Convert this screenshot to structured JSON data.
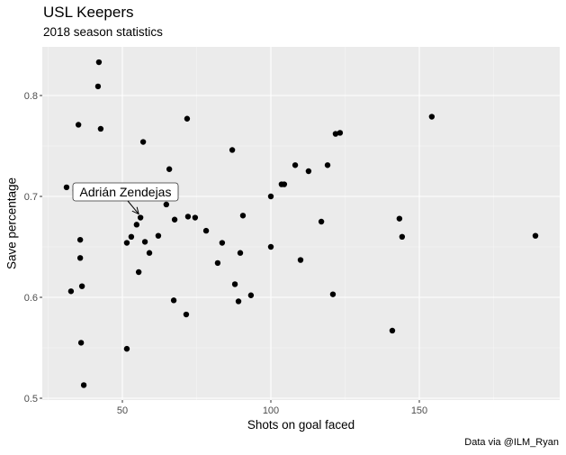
{
  "title": "USL Keepers",
  "subtitle": "2018 season statistics",
  "caption": "Data via @ILM_Ryan",
  "chart_data": {
    "type": "scatter",
    "title": "USL Keepers",
    "subtitle": "2018 season statistics",
    "xlabel": "Shots on goal faced",
    "ylabel": "Save percentage",
    "caption": "Data via @ILM_Ryan",
    "xlim": [
      25,
      199
    ],
    "ylim": [
      0.495,
      0.845
    ],
    "x_ticks": [
      50,
      100,
      150
    ],
    "y_ticks": [
      0.5,
      0.6,
      0.7,
      0.8
    ],
    "x_tick_labels": [
      "50",
      "100",
      "150"
    ],
    "y_tick_labels": [
      "0.5",
      "0.6",
      "0.7",
      "0.8"
    ],
    "grid": true,
    "legend": null,
    "points": [
      {
        "x": 42.1,
        "y": 0.833
      },
      {
        "x": 41.8,
        "y": 0.809
      },
      {
        "x": 35.2,
        "y": 0.771
      },
      {
        "x": 42.7,
        "y": 0.767
      },
      {
        "x": 57.0,
        "y": 0.754
      },
      {
        "x": 65.8,
        "y": 0.727
      },
      {
        "x": 31.2,
        "y": 0.709
      },
      {
        "x": 34.2,
        "y": 0.706
      },
      {
        "x": 56.1,
        "y": 0.679
      },
      {
        "x": 54.8,
        "y": 0.672
      },
      {
        "x": 64.8,
        "y": 0.692
      },
      {
        "x": 67.6,
        "y": 0.677
      },
      {
        "x": 53.0,
        "y": 0.66
      },
      {
        "x": 51.5,
        "y": 0.654
      },
      {
        "x": 57.6,
        "y": 0.655
      },
      {
        "x": 62.1,
        "y": 0.661
      },
      {
        "x": 59.1,
        "y": 0.644
      },
      {
        "x": 35.8,
        "y": 0.657
      },
      {
        "x": 35.8,
        "y": 0.639
      },
      {
        "x": 55.5,
        "y": 0.625
      },
      {
        "x": 32.7,
        "y": 0.606
      },
      {
        "x": 36.4,
        "y": 0.611
      },
      {
        "x": 67.3,
        "y": 0.597
      },
      {
        "x": 71.5,
        "y": 0.583
      },
      {
        "x": 36.1,
        "y": 0.555
      },
      {
        "x": 51.5,
        "y": 0.549
      },
      {
        "x": 37.0,
        "y": 0.513
      },
      {
        "x": 71.8,
        "y": 0.777
      },
      {
        "x": 87.0,
        "y": 0.746
      },
      {
        "x": 108.2,
        "y": 0.731
      },
      {
        "x": 112.7,
        "y": 0.725
      },
      {
        "x": 103.6,
        "y": 0.712
      },
      {
        "x": 104.5,
        "y": 0.712
      },
      {
        "x": 100.0,
        "y": 0.7
      },
      {
        "x": 72.1,
        "y": 0.68
      },
      {
        "x": 74.5,
        "y": 0.679
      },
      {
        "x": 90.6,
        "y": 0.681
      },
      {
        "x": 78.2,
        "y": 0.666
      },
      {
        "x": 83.6,
        "y": 0.654
      },
      {
        "x": 100.0,
        "y": 0.65
      },
      {
        "x": 89.7,
        "y": 0.644
      },
      {
        "x": 82.1,
        "y": 0.634
      },
      {
        "x": 110.0,
        "y": 0.637
      },
      {
        "x": 87.9,
        "y": 0.613
      },
      {
        "x": 93.3,
        "y": 0.602
      },
      {
        "x": 89.1,
        "y": 0.596
      },
      {
        "x": 154.2,
        "y": 0.779
      },
      {
        "x": 121.8,
        "y": 0.762
      },
      {
        "x": 123.3,
        "y": 0.763
      },
      {
        "x": 119.1,
        "y": 0.731
      },
      {
        "x": 117.0,
        "y": 0.675
      },
      {
        "x": 143.3,
        "y": 0.678
      },
      {
        "x": 144.2,
        "y": 0.66
      },
      {
        "x": 120.9,
        "y": 0.603
      },
      {
        "x": 140.9,
        "y": 0.567
      },
      {
        "x": 189.1,
        "y": 0.661
      }
    ],
    "annotations": [
      {
        "label": "Adrián Zendejas",
        "x": 56.1,
        "y": 0.679,
        "arrow": true
      }
    ]
  },
  "colors": {
    "panel_bg": "#ebebeb",
    "grid_major": "#ffffff",
    "grid_minor": "#f5f5f5",
    "point": "#000000",
    "tick_text": "#4d4d4d"
  }
}
